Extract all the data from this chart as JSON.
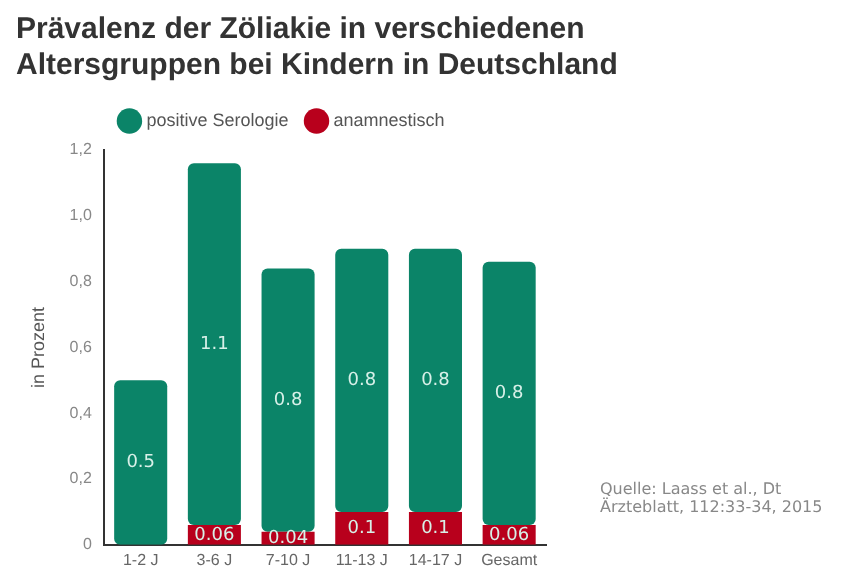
{
  "chart_data": {
    "type": "bar",
    "stacked": true,
    "title": "Prävalenz der Zöliakie in verschiedenen Altersgruppen bei Kindern in Deutschland",
    "ylabel": "in Prozent",
    "categories": [
      "1-2 J",
      "3-6 J",
      "7-10 J",
      "11-13 J",
      "14-17 J",
      "Gesamt"
    ],
    "series": [
      {
        "name": "anamnestisch",
        "color": "#b8001c",
        "values": [
          null,
          0.06,
          0.04,
          0.1,
          0.1,
          0.06
        ]
      },
      {
        "name": "positive Serologie",
        "color": "#0b8468",
        "values": [
          0.5,
          1.1,
          0.8,
          0.8,
          0.8,
          0.8
        ]
      }
    ],
    "ylim": [
      0,
      1.2
    ],
    "yticks": [
      0,
      {
        "value": 0.2,
        "label": "0,2"
      },
      {
        "value": 0.4,
        "label": "0,4"
      },
      {
        "value": 0.6,
        "label": "0,6"
      },
      {
        "value": 0.8,
        "label": "0,8"
      },
      {
        "value": 1,
        "label": "1,0"
      },
      {
        "value": 1.2,
        "label": "1,2"
      }
    ],
    "grid": false,
    "legend": "top",
    "data_labels": true,
    "annotations": [
      "Quelle: Laass et al., Dt Ärzteblatt, 112:33-34, 2015"
    ]
  }
}
